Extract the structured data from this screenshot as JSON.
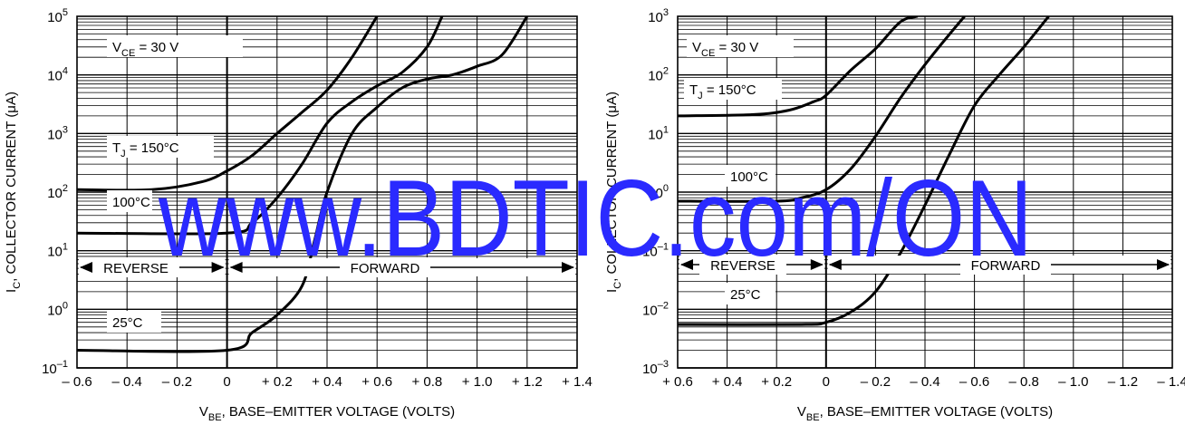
{
  "watermark": "www.BDTIC.com/ON",
  "chart_data": [
    {
      "type": "line",
      "x_tick_labels": [
        "– 0.6",
        "– 0.4",
        "– 0.2",
        "0",
        "+ 0.2",
        "+ 0.4",
        "+ 0.6",
        "+ 0.8",
        "+ 1.0",
        "+ 1.2",
        "+ 1.4"
      ],
      "x_tick_values": [
        -0.6,
        -0.4,
        -0.2,
        0,
        0.2,
        0.4,
        0.6,
        0.8,
        1.0,
        1.2,
        1.4
      ],
      "xlim": [
        -0.6,
        1.4
      ],
      "ylim": [
        0.1,
        100000
      ],
      "y_scale": "log",
      "y_tick_labels": [
        {
          "base": "10",
          "exp": "–1"
        },
        {
          "base": "10",
          "exp": "0"
        },
        {
          "base": "10",
          "exp": "1"
        },
        {
          "base": "10",
          "exp": "2"
        },
        {
          "base": "10",
          "exp": "3"
        },
        {
          "base": "10",
          "exp": "4"
        },
        {
          "base": "10",
          "exp": "5"
        }
      ],
      "y_tick_values": [
        0.1,
        1,
        10,
        100,
        1000,
        10000,
        100000
      ],
      "xlabel": {
        "main": "V",
        "sub": "BE",
        "rest": ", BASE–EMITTER VOLTAGE (VOLTS)"
      },
      "ylabel": {
        "main": "I",
        "sub": "C",
        "rest": ", COLLECTOR CURRENT (μA)"
      },
      "annotations": {
        "vce": {
          "main": "V",
          "sub": "CE",
          "rest": " = 30 V"
        },
        "tj": {
          "main": "T",
          "sub": "J",
          "rest": " = 150°C"
        },
        "t100": "100°C",
        "t25": "25°C",
        "reverse": "REVERSE",
        "forward": "FORWARD"
      },
      "grid": true,
      "series": [
        {
          "values": [
            [
              -0.6,
              110
            ],
            [
              -0.3,
              110
            ],
            [
              -0.1,
              150
            ],
            [
              0,
              230
            ],
            [
              0.1,
              420
            ],
            [
              0.2,
              1000
            ],
            [
              0.3,
              2300
            ],
            [
              0.4,
              5500
            ],
            [
              0.5,
              20000
            ],
            [
              0.6,
              100000
            ]
          ]
        },
        {
          "values": [
            [
              -0.6,
              20
            ],
            [
              0,
              20
            ],
            [
              0.1,
              30
            ],
            [
              0.2,
              80
            ],
            [
              0.3,
              300
            ],
            [
              0.4,
              1500
            ],
            [
              0.5,
              3500
            ],
            [
              0.6,
              6500
            ],
            [
              0.7,
              11000
            ],
            [
              0.8,
              30000
            ],
            [
              0.86,
              100000
            ]
          ]
        },
        {
          "values": [
            [
              -0.6,
              0.2
            ],
            [
              0,
              0.2
            ],
            [
              0.1,
              0.4
            ],
            [
              0.2,
              0.8
            ],
            [
              0.3,
              2.5
            ],
            [
              0.35,
              15
            ],
            [
              0.4,
              100
            ],
            [
              0.5,
              1000
            ],
            [
              0.6,
              2800
            ],
            [
              0.7,
              6000
            ],
            [
              0.8,
              8500
            ],
            [
              0.9,
              10000
            ],
            [
              1.0,
              14000
            ],
            [
              1.1,
              22000
            ],
            [
              1.2,
              100000
            ]
          ]
        }
      ]
    },
    {
      "type": "line",
      "x_tick_labels": [
        "+ 0.6",
        "+ 0.4",
        "+ 0.2",
        "0",
        "– 0.2",
        "– 0.4",
        "– 0.6",
        "– 0.8",
        "– 1.0",
        "– 1.2",
        "– 1.4"
      ],
      "x_tick_values": [
        0.6,
        0.4,
        0.2,
        0,
        -0.2,
        -0.4,
        -0.6,
        -0.8,
        -1.0,
        -1.2,
        -1.4
      ],
      "xlim": [
        0.6,
        -1.4
      ],
      "ylim": [
        0.001,
        1000
      ],
      "y_scale": "log",
      "y_tick_labels": [
        {
          "base": "10",
          "exp": "–3"
        },
        {
          "base": "10",
          "exp": "–2"
        },
        {
          "base": "10",
          "exp": "–1"
        },
        {
          "base": "10",
          "exp": "0"
        },
        {
          "base": "10",
          "exp": "1"
        },
        {
          "base": "10",
          "exp": "2"
        },
        {
          "base": "10",
          "exp": "3"
        }
      ],
      "y_tick_values": [
        0.001,
        0.01,
        0.1,
        1,
        10,
        100,
        1000
      ],
      "xlabel": {
        "main": "V",
        "sub": "BE",
        "rest": ", BASE–EMITTER VOLTAGE (VOLTS)"
      },
      "ylabel": {
        "main": "I",
        "sub": "C",
        "rest": ", COLLECTOR CURRENT (μA)"
      },
      "annotations": {
        "vce": {
          "main": "V",
          "sub": "CE",
          "rest": " = 30 V"
        },
        "tj": {
          "main": "T",
          "sub": "J",
          "rest": " = 150°C"
        },
        "t100": "100°C",
        "t25": "25°C",
        "reverse": "REVERSE",
        "forward": "FORWARD"
      },
      "grid": true,
      "series": [
        {
          "values": [
            [
              0.6,
              20
            ],
            [
              0.3,
              21
            ],
            [
              0.15,
              25
            ],
            [
              0.05,
              35
            ],
            [
              0,
              45
            ],
            [
              -0.1,
              120
            ],
            [
              -0.2,
              280
            ],
            [
              -0.3,
              800
            ],
            [
              -0.37,
              1000
            ]
          ]
        },
        {
          "values": [
            [
              0.6,
              0.7
            ],
            [
              0.2,
              0.7
            ],
            [
              0.1,
              0.8
            ],
            [
              0,
              1.1
            ],
            [
              -0.1,
              2.5
            ],
            [
              -0.2,
              9
            ],
            [
              -0.3,
              40
            ],
            [
              -0.4,
              150
            ],
            [
              -0.5,
              500
            ],
            [
              -0.56,
              1000
            ]
          ]
        },
        {
          "values": [
            [
              0.6,
              0.0055
            ],
            [
              0.1,
              0.0055
            ],
            [
              0,
              0.006
            ],
            [
              -0.1,
              0.009
            ],
            [
              -0.2,
              0.02
            ],
            [
              -0.3,
              0.09
            ],
            [
              -0.4,
              0.6
            ],
            [
              -0.5,
              4.5
            ],
            [
              -0.6,
              30
            ],
            [
              -0.7,
              100
            ],
            [
              -0.8,
              300
            ],
            [
              -0.9,
              1000
            ]
          ]
        }
      ]
    }
  ]
}
